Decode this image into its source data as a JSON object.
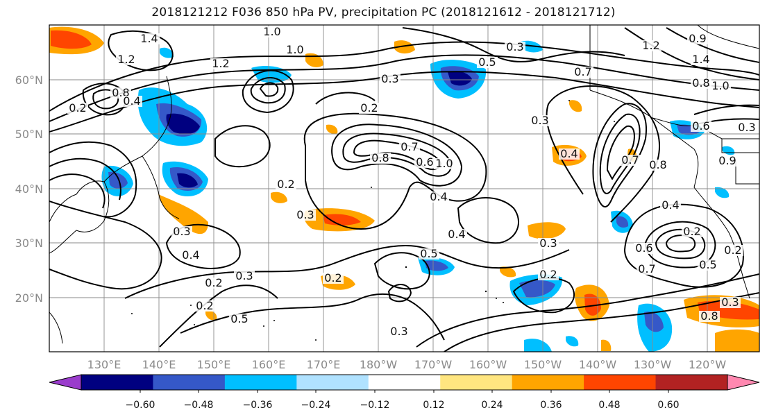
{
  "title": "2018121212 F036 850 hPa PV, precipitation PC (2018121612 - 2018121712)",
  "map": {
    "lat_labels": [
      "60°N",
      "50°N",
      "40°N",
      "30°N",
      "20°N"
    ],
    "lon_labels": [
      "130°E",
      "140°E",
      "150°E",
      "160°E",
      "170°E",
      "180°W",
      "170°W",
      "160°W",
      "150°W",
      "140°W",
      "130°W",
      "120°W"
    ],
    "pv_contour_labels": [
      "1.0",
      "1.0",
      "1.2",
      "1.4",
      "1.2",
      "0.8",
      "0.3",
      "0.2",
      "0.8",
      "0.7",
      "0.6",
      "1.0",
      "0.4",
      "0.2",
      "0.3",
      "0.3",
      "0.4",
      "0.2",
      "0.3",
      "0.5",
      "0.2",
      "0.4",
      "0.3",
      "0.2",
      "0.3",
      "0.2",
      "0.4",
      "0.7",
      "0.5",
      "0.3",
      "0.2",
      "0.3",
      "0.5",
      "0.3",
      "0.8",
      "0.6",
      "0.5",
      "0.2",
      "0.7",
      "0.2",
      "0.4",
      "0.8",
      "0.7",
      "1.0",
      "0.8",
      "0.9",
      "1.4",
      "1.2",
      "0.6",
      "0.3",
      "0.9",
      "0.4"
    ]
  },
  "colorbar": {
    "tick_labels": [
      "−0.60",
      "−0.48",
      "−0.36",
      "−0.24",
      "−0.12",
      "0.12",
      "0.24",
      "0.36",
      "0.48",
      "0.60"
    ],
    "bin_colors": [
      "#9a3ccc",
      "#000080",
      "#3558c8",
      "#00bfff",
      "#b0e2ff",
      "#ffffff",
      "#ffe680",
      "#ffa500",
      "#ff4500",
      "#b22222",
      "#ff88b0"
    ]
  }
}
